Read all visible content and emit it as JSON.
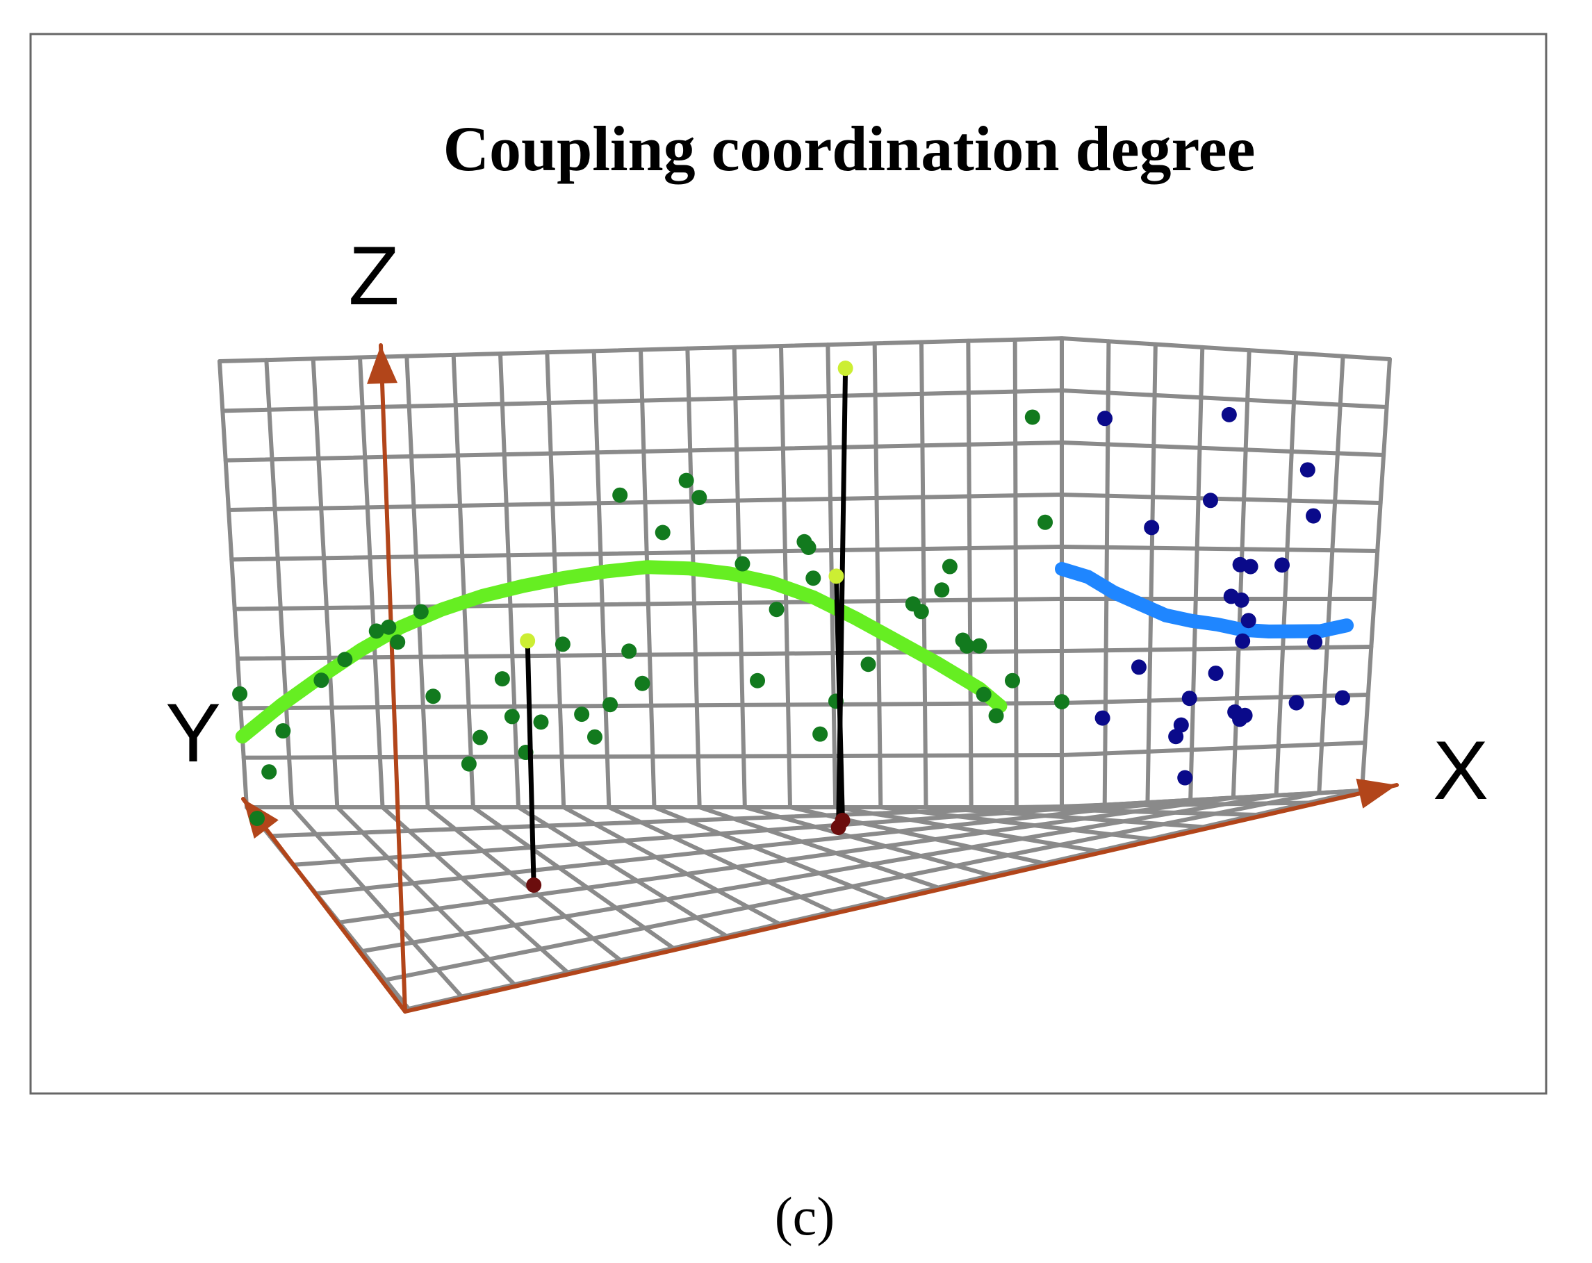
{
  "caption": "(c)",
  "chart_data": {
    "type": "scatter",
    "title": "Coupling coordination degree",
    "axes": {
      "x": "X",
      "y": "Y",
      "z": "Z"
    },
    "grid": true,
    "colors": {
      "axis": "#b2451a",
      "grid": "#8a8a8a",
      "xz_points": "#127a1e",
      "xz_fit": "#66ee22",
      "yz_points": "#0a0a8a",
      "yz_fit": "#1f86ff",
      "stem_top": "#ccee33",
      "stem_base": "#6b0d0d",
      "stem": "#000000"
    },
    "xz_wall_points": [
      [
        0.0,
        0.61
      ],
      [
        0.6,
        0.19
      ],
      [
        1.0,
        0.41
      ],
      [
        2.0,
        0.68
      ],
      [
        2.6,
        0.79
      ],
      [
        3.4,
        0.94
      ],
      [
        3.7,
        0.96
      ],
      [
        3.9,
        0.88
      ],
      [
        4.5,
        1.04
      ],
      [
        4.7,
        0.59
      ],
      [
        5.5,
        0.23
      ],
      [
        5.8,
        0.37
      ],
      [
        6.4,
        0.68
      ],
      [
        6.6,
        0.48
      ],
      [
        6.9,
        0.29
      ],
      [
        7.3,
        0.45
      ],
      [
        7.9,
        0.86
      ],
      [
        8.3,
        0.49
      ],
      [
        8.6,
        0.37
      ],
      [
        9.0,
        0.54
      ],
      [
        9.4,
        1.64
      ],
      [
        9.5,
        0.82
      ],
      [
        9.8,
        0.65
      ],
      [
        10.4,
        1.44
      ],
      [
        11.0,
        1.71
      ],
      [
        11.3,
        1.62
      ],
      [
        12.3,
        1.27
      ],
      [
        12.6,
        0.66
      ],
      [
        13.1,
        1.03
      ],
      [
        13.8,
        1.38
      ],
      [
        13.9,
        1.35
      ],
      [
        14.0,
        1.19
      ],
      [
        14.1,
        0.38
      ],
      [
        14.5,
        0.55
      ],
      [
        15.3,
        0.74
      ],
      [
        16.4,
        1.05
      ],
      [
        16.6,
        1.01
      ],
      [
        17.1,
        1.12
      ],
      [
        17.3,
        1.24
      ],
      [
        17.6,
        0.86
      ],
      [
        17.7,
        0.83
      ],
      [
        18.0,
        0.83
      ],
      [
        18.1,
        0.58
      ],
      [
        18.4,
        0.47
      ],
      [
        18.8,
        0.65
      ],
      [
        19.3,
        2.0
      ],
      [
        19.6,
        1.46
      ],
      [
        20.0,
        0.54
      ]
    ],
    "xz_fit_curve": [
      [
        0.0,
        0.38
      ],
      [
        1.0,
        0.55
      ],
      [
        2.0,
        0.7
      ],
      [
        3.0,
        0.84
      ],
      [
        4.0,
        0.96
      ],
      [
        5.0,
        1.05
      ],
      [
        6.0,
        1.12
      ],
      [
        7.0,
        1.17
      ],
      [
        8.0,
        1.21
      ],
      [
        9.0,
        1.24
      ],
      [
        10.0,
        1.26
      ],
      [
        11.0,
        1.25
      ],
      [
        12.0,
        1.22
      ],
      [
        13.0,
        1.17
      ],
      [
        14.0,
        1.09
      ],
      [
        15.0,
        0.98
      ],
      [
        16.0,
        0.86
      ],
      [
        17.0,
        0.74
      ],
      [
        18.0,
        0.61
      ],
      [
        18.5,
        0.52
      ]
    ],
    "yz_wall_points": [
      [
        1.6,
        2.0
      ],
      [
        3.4,
        1.44
      ],
      [
        6.2,
        2.05
      ],
      [
        5.6,
        1.59
      ],
      [
        6.8,
        1.25
      ],
      [
        6.9,
        1.06
      ],
      [
        6.5,
        1.08
      ],
      [
        7.2,
        1.24
      ],
      [
        9.2,
        1.77
      ],
      [
        9.5,
        1.52
      ],
      [
        8.4,
        1.25
      ],
      [
        1.6,
        0.45
      ],
      [
        3.0,
        0.71
      ],
      [
        7.0,
        0.84
      ],
      [
        7.2,
        0.95
      ],
      [
        6.0,
        0.67
      ],
      [
        5.0,
        0.54
      ],
      [
        4.7,
        0.4
      ],
      [
        4.5,
        0.34
      ],
      [
        6.8,
        0.46
      ],
      [
        7.0,
        0.42
      ],
      [
        7.2,
        0.44
      ],
      [
        9.8,
        0.83
      ],
      [
        9.2,
        0.5
      ],
      [
        11.0,
        0.52
      ],
      [
        4.9,
        0.12
      ]
    ],
    "yz_fit_curve": [
      [
        0.0,
        1.22
      ],
      [
        1.0,
        1.18
      ],
      [
        2.0,
        1.1
      ],
      [
        3.0,
        1.04
      ],
      [
        4.0,
        0.98
      ],
      [
        5.0,
        0.95
      ],
      [
        6.0,
        0.93
      ],
      [
        7.0,
        0.9
      ],
      [
        8.0,
        0.89
      ],
      [
        9.0,
        0.89
      ],
      [
        10.0,
        0.89
      ],
      [
        11.0,
        0.92
      ]
    ],
    "stems": [
      {
        "x": 4.6,
        "y": 3.6,
        "z": 1.25
      },
      {
        "x": 12.6,
        "y": 2.2,
        "z": 2.35
      },
      {
        "x": 13.2,
        "y": 1.6,
        "z": 1.25
      }
    ]
  }
}
